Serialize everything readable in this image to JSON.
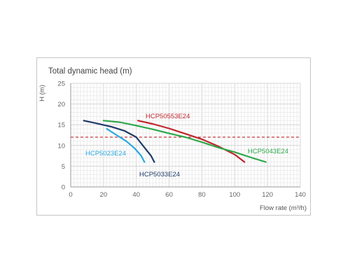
{
  "chart_data": {
    "type": "line",
    "title": "Total dynamic head (m)",
    "xlabel": "Flow rate (m³/h)",
    "ylabel": "H (m)",
    "xlim": [
      0,
      140
    ],
    "ylim": [
      0,
      25
    ],
    "x_ticks": [
      "0",
      "20",
      "40",
      "60",
      "80",
      "100",
      "120",
      "140"
    ],
    "y_ticks": [
      "0",
      "5",
      "10",
      "15",
      "20",
      "25"
    ],
    "grid": true,
    "reference_line": {
      "y": 12,
      "color": "#c0262d",
      "style": "dashed"
    },
    "series": [
      {
        "name": "HCP50553E24",
        "color": "#c0262d",
        "label_color": "#c0262d",
        "points": [
          [
            41,
            16
          ],
          [
            50,
            15.2
          ],
          [
            60,
            14.1
          ],
          [
            70,
            12.8
          ],
          [
            80,
            11.5
          ],
          [
            90,
            9.8
          ],
          [
            100,
            7.8
          ],
          [
            106,
            6
          ]
        ]
      },
      {
        "name": "HCP5043E24",
        "color": "#2ea84a",
        "label_color": "#2ea84a",
        "points": [
          [
            20,
            16
          ],
          [
            30,
            15.6
          ],
          [
            40,
            14.8
          ],
          [
            50,
            13.9
          ],
          [
            60,
            12.9
          ],
          [
            70,
            12
          ],
          [
            80,
            10.8
          ],
          [
            90,
            9.5
          ],
          [
            100,
            8.4
          ],
          [
            110,
            7.1
          ],
          [
            119,
            6
          ]
        ]
      },
      {
        "name": "HCP5033E24",
        "color": "#1f3a68",
        "label_color": "#1f3a68",
        "points": [
          [
            8,
            16
          ],
          [
            15,
            15.4
          ],
          [
            25,
            14.5
          ],
          [
            33,
            13.5
          ],
          [
            40,
            12
          ],
          [
            45,
            9.5
          ],
          [
            49,
            7.5
          ],
          [
            51,
            6
          ]
        ]
      },
      {
        "name": "HCP5023E24",
        "color": "#2aa8df",
        "label_color": "#2aa8df",
        "points": [
          [
            22,
            14
          ],
          [
            28,
            12.5
          ],
          [
            34,
            11
          ],
          [
            39,
            9.3
          ],
          [
            43,
            7.5
          ],
          [
            45,
            6
          ]
        ]
      }
    ]
  }
}
